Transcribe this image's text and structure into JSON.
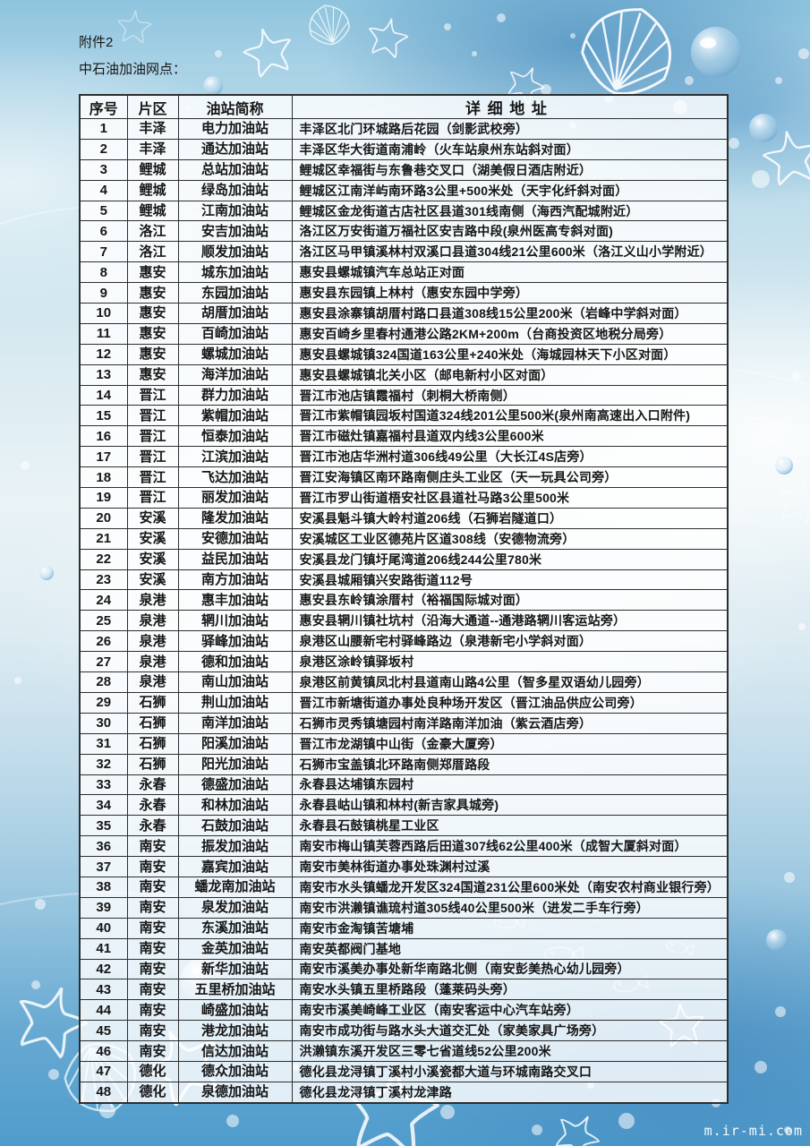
{
  "page": {
    "attachment_label": "附件2",
    "subtitle": "中石油加油网点：",
    "watermark": "m.ir-mi.com"
  },
  "colors": {
    "text": "#161616",
    "table_border": "#2e2e2e",
    "background_top_blue": "#8ec4de",
    "background_bottom_blue": "#4f9ccc",
    "decoration_white": "#ffffff"
  },
  "table": {
    "columns": [
      "序号",
      "片区",
      "油站简称",
      "详细地址"
    ],
    "rows": [
      {
        "no": "1",
        "district": "丰泽",
        "name": "电力加油站",
        "address": "丰泽区北门环城路后花园（剑影武校旁）"
      },
      {
        "no": "2",
        "district": "丰泽",
        "name": "通达加油站",
        "address": "丰泽区华大街道南浦岭（火车站泉州东站斜对面）"
      },
      {
        "no": "3",
        "district": "鲤城",
        "name": "总站加油站",
        "address": "鲤城区幸福街与东鲁巷交叉口（湖美假日酒店附近）"
      },
      {
        "no": "4",
        "district": "鲤城",
        "name": "绿岛加油站",
        "address": "鲤城区江南洋屿南环路3公里+500米处（天宇化纤斜对面）"
      },
      {
        "no": "5",
        "district": "鲤城",
        "name": "江南加油站",
        "address": "鲤城区金龙街道古店社区县道301线南侧（海西汽配城附近）"
      },
      {
        "no": "6",
        "district": "洛江",
        "name": "安吉加油站",
        "address": "洛江区万安街道万福社区安吉路中段(泉州医高专斜对面)"
      },
      {
        "no": "7",
        "district": "洛江",
        "name": "顺发加油站",
        "address": "洛江区马甲镇溪林村双溪口县道304线21公里600米（洛江义山小学附近）"
      },
      {
        "no": "8",
        "district": "惠安",
        "name": "城东加油站",
        "address": "惠安县螺城镇汽车总站正对面"
      },
      {
        "no": "9",
        "district": "惠安",
        "name": "东园加油站",
        "address": "惠安县东园镇上林村（惠安东园中学旁）"
      },
      {
        "no": "10",
        "district": "惠安",
        "name": "胡厝加油站",
        "address": "惠安县涂寨镇胡厝村路口县道308线15公里200米（岩峰中学斜对面）"
      },
      {
        "no": "11",
        "district": "惠安",
        "name": "百崎加油站",
        "address": "惠安百崎乡里春村通港公路2KM+200m（台商投资区地税分局旁）"
      },
      {
        "no": "12",
        "district": "惠安",
        "name": "螺城加油站",
        "address": "惠安县螺城镇324国道163公里+240米处（海城园林天下小区对面）"
      },
      {
        "no": "13",
        "district": "惠安",
        "name": "海洋加油站",
        "address": "惠安县螺城镇北关小区（邮电新村小区对面）"
      },
      {
        "no": "14",
        "district": "晋江",
        "name": "群力加油站",
        "address": "晋江市池店镇霞福村（刺桐大桥南侧）"
      },
      {
        "no": "15",
        "district": "晋江",
        "name": "紫帽加油站",
        "address": "晋江市紫帽镇园坂村国道324线201公里500米(泉州南高速出入口附件)"
      },
      {
        "no": "16",
        "district": "晋江",
        "name": "恒泰加油站",
        "address": "晋江市磁灶镇嘉福村县道双内线3公里600米"
      },
      {
        "no": "17",
        "district": "晋江",
        "name": "江滨加油站",
        "address": "晋江市池店华洲村道306线49公里（大长江4S店旁）"
      },
      {
        "no": "18",
        "district": "晋江",
        "name": "飞达加油站",
        "address": "晋江安海镇区南环路南侧庄头工业区（天一玩具公司旁）"
      },
      {
        "no": "19",
        "district": "晋江",
        "name": "丽发加油站",
        "address": "晋江市罗山街道梧安社区县道社马路3公里500米"
      },
      {
        "no": "20",
        "district": "安溪",
        "name": "隆发加油站",
        "address": "安溪县魁斗镇大岭村道206线（石狮岩隧道口）"
      },
      {
        "no": "21",
        "district": "安溪",
        "name": "安德加油站",
        "address": "安溪城区工业区德苑片区道308线（安德物流旁）"
      },
      {
        "no": "22",
        "district": "安溪",
        "name": "益民加油站",
        "address": "安溪县龙门镇圩尾湾道206线244公里780米"
      },
      {
        "no": "23",
        "district": "安溪",
        "name": "南方加油站",
        "address": "安溪县城厢镇兴安路街道112号"
      },
      {
        "no": "24",
        "district": "泉港",
        "name": "惠丰加油站",
        "address": "惠安县东岭镇涂厝村（裕福国际城对面）"
      },
      {
        "no": "25",
        "district": "泉港",
        "name": "辋川加油站",
        "address": "惠安县辋川镇社坑村（沿海大通道--通港路辋川客运站旁）"
      },
      {
        "no": "26",
        "district": "泉港",
        "name": "驿峰加油站",
        "address": "泉港区山腰新宅村驿峰路边（泉港新宅小学斜对面）"
      },
      {
        "no": "27",
        "district": "泉港",
        "name": "德和加油站",
        "address": "泉港区涂岭镇驿坂村"
      },
      {
        "no": "28",
        "district": "泉港",
        "name": "南山加油站",
        "address": "泉港区前黄镇凤北村县道南山路4公里（智多星双语幼儿园旁）"
      },
      {
        "no": "29",
        "district": "石狮",
        "name": "荆山加油站",
        "address": "晋江市新塘街道办事处良种场开发区（晋江油品供应公司旁）"
      },
      {
        "no": "30",
        "district": "石狮",
        "name": "南洋加油站",
        "address": "石狮市灵秀镇塘园村南洋路南洋加油（紫云酒店旁）"
      },
      {
        "no": "31",
        "district": "石狮",
        "name": "阳溪加油站",
        "address": "晋江市龙湖镇中山街（金豪大厦旁）"
      },
      {
        "no": "32",
        "district": "石狮",
        "name": "阳光加油站",
        "address": "石狮市宝盖镇北环路南侧郑厝路段"
      },
      {
        "no": "33",
        "district": "永春",
        "name": "德盛加油站",
        "address": "永春县达埔镇东园村"
      },
      {
        "no": "34",
        "district": "永春",
        "name": "和林加油站",
        "address": "永春县岵山镇和林村(新吉家具城旁)"
      },
      {
        "no": "35",
        "district": "永春",
        "name": "石鼓加油站",
        "address": "永春县石鼓镇桃星工业区"
      },
      {
        "no": "36",
        "district": "南安",
        "name": "振发加油站",
        "address": "南安市梅山镇芙蓉西路后田道307线62公里400米（成智大厦斜对面）"
      },
      {
        "no": "37",
        "district": "南安",
        "name": "嘉宾加油站",
        "address": "南安市美林街道办事处珠渊村过溪"
      },
      {
        "no": "38",
        "district": "南安",
        "name": "蟠龙南加油站",
        "address": "南安市水头镇蟠龙开发区324国道231公里600米处（南安农村商业银行旁）"
      },
      {
        "no": "39",
        "district": "南安",
        "name": "泉发加油站",
        "address": "南安市洪濑镇谯琉村道305线40公里500米（进发二手车行旁）"
      },
      {
        "no": "40",
        "district": "南安",
        "name": "东溪加油站",
        "address": "南安市金淘镇苦塘埔"
      },
      {
        "no": "41",
        "district": "南安",
        "name": "金英加油站",
        "address": "南安英都阀门基地"
      },
      {
        "no": "42",
        "district": "南安",
        "name": "新华加油站",
        "address": "南安市溪美办事处新华南路北侧（南安彭美热心幼儿园旁）"
      },
      {
        "no": "43",
        "district": "南安",
        "name": "五里桥加油站",
        "address": "南安水头镇五里桥路段（蓬莱码头旁）"
      },
      {
        "no": "44",
        "district": "南安",
        "name": "崎盛加油站",
        "address": "南安市溪美崎峰工业区（南安客运中心汽车站旁）"
      },
      {
        "no": "45",
        "district": "南安",
        "name": "港龙加油站",
        "address": "南安市成功街与路水头大道交汇处（家美家具广场旁）"
      },
      {
        "no": "46",
        "district": "南安",
        "name": "信达加油站",
        "address": "洪濑镇东溪开发区三零七省道线52公里200米"
      },
      {
        "no": "47",
        "district": "德化",
        "name": "德众加油站",
        "address": "德化县龙浔镇丁溪村小溪瓷都大道与环城南路交叉口"
      },
      {
        "no": "48",
        "district": "德化",
        "name": "泉德加油站",
        "address": "德化县龙浔镇丁溪村龙津路"
      }
    ]
  }
}
